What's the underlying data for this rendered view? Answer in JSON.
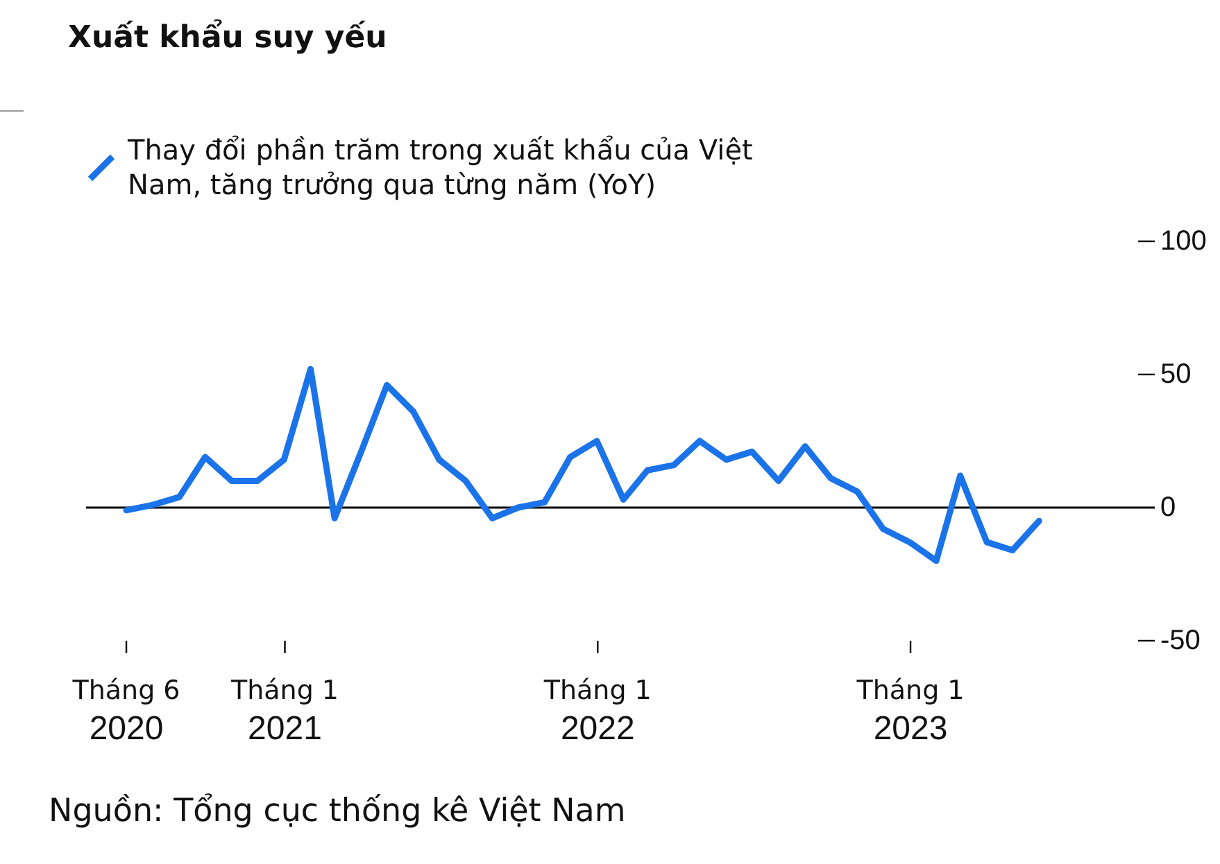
{
  "chart_data": {
    "type": "line",
    "title": "Xuất khẩu suy yếu",
    "annotations": [
      "Nguồn: Tổng cục thống kê Việt Nam"
    ],
    "x": [
      "2020-06-30",
      "2020-07-31",
      "2020-08-31",
      "2020-09-30",
      "2020-10-31",
      "2020-11-30",
      "2020-12-31",
      "2021-01-31",
      "2021-02-28",
      "2021-03-31",
      "2021-04-30",
      "2021-05-31",
      "2021-06-30",
      "2021-07-31",
      "2021-08-31",
      "2021-09-30",
      "2021-10-31",
      "2021-11-30",
      "2021-12-31",
      "2022-01-31",
      "2022-02-28",
      "2022-03-31",
      "2022-04-30",
      "2022-05-31",
      "2022-06-30",
      "2022-07-31",
      "2022-08-31",
      "2022-09-30",
      "2022-10-31",
      "2022-11-30",
      "2022-12-31",
      "2023-01-31",
      "2023-02-28",
      "2023-03-31",
      "2023-04-30",
      "2023-05-31"
    ],
    "series": [
      {
        "name": "Thay đổi phần trăm trong xuất khẩu của Việt Nam, tăng trưởng qua từng năm (YoY)",
        "color": "#1a73e8",
        "values": [
          -1,
          1,
          4,
          19,
          10,
          10,
          18,
          52,
          -4,
          21,
          46,
          36,
          18,
          10,
          -4,
          0,
          2,
          19,
          25,
          3,
          14,
          16,
          25,
          18,
          21,
          10,
          23,
          11,
          6,
          -8,
          -13,
          -20,
          12,
          -13,
          -16,
          -5
        ]
      }
    ],
    "xlim": [
      "2020-05-14",
      "2023-10-13"
    ],
    "xticks": [
      {
        "value": "2020-06-30",
        "label": "Tháng 6\n2020"
      },
      {
        "value": "2021-01-01",
        "label": "Tháng 1\n2021"
      },
      {
        "value": "2022-01-01",
        "label": "Tháng 1\n2022"
      },
      {
        "value": "2023-01-01",
        "label": "Tháng 1\n2023"
      }
    ],
    "ylim": [
      -50,
      100
    ],
    "yticks": [
      -50,
      0,
      50,
      100
    ],
    "ref_lines": [
      {
        "axis": "y",
        "value": 0,
        "color": "#000000"
      }
    ],
    "legend": "top left"
  }
}
